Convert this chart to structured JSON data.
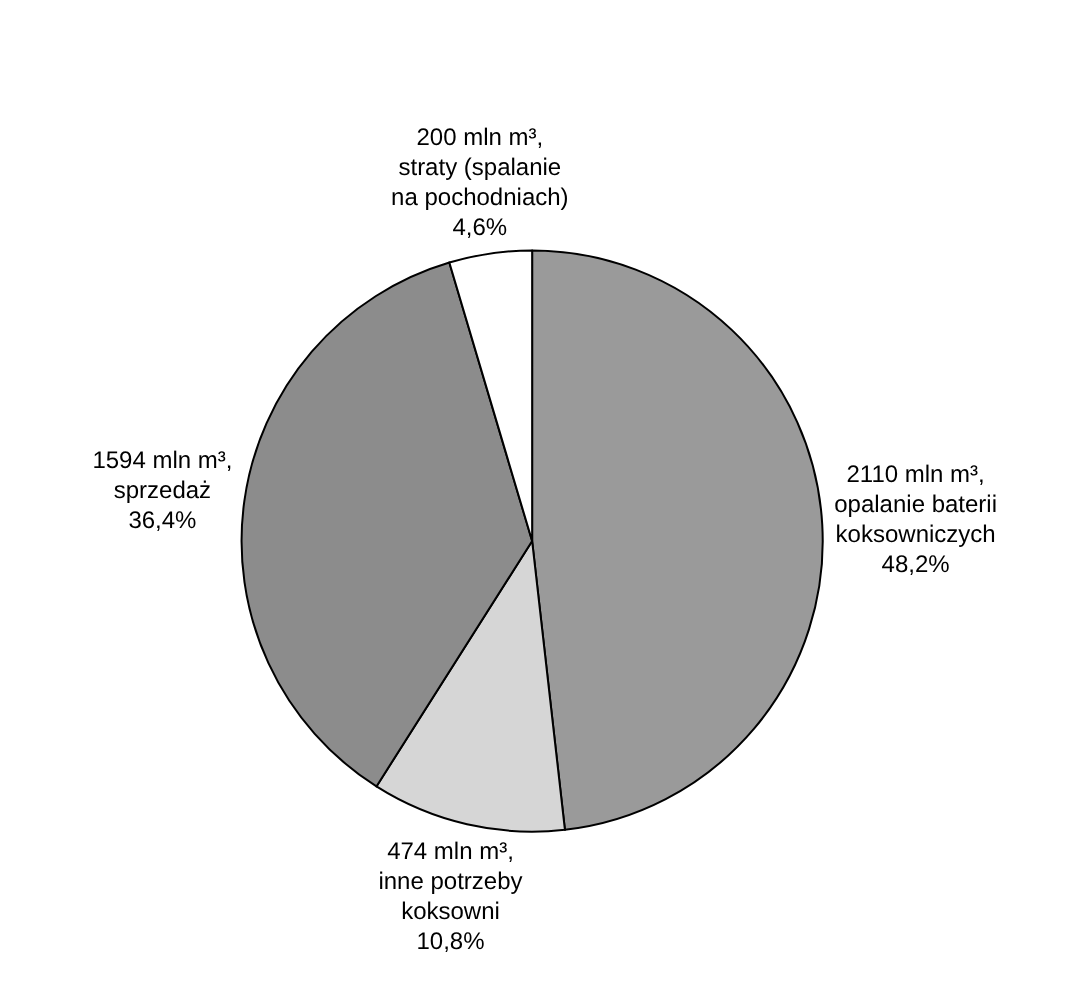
{
  "chart_data": {
    "type": "pie",
    "categories": [
      "2110 mln m³,\nopalanie baterii\nkoksowniczych\n48,2%",
      "474 mln m³,\ninne potrzeby\nkoksowni\n10,8%",
      "1594 mln m³,\nsprzedaż\n36,4%",
      "200 mln m³,\nstraty (spalanie\nna pochodniach)\n4,6%"
    ],
    "values": [
      48.2,
      10.8,
      36.4,
      4.6
    ],
    "colors": [
      "#9a9a9a",
      "#d6d6d6",
      "#8c8c8c",
      "#ffffff"
    ],
    "legend": false
  }
}
